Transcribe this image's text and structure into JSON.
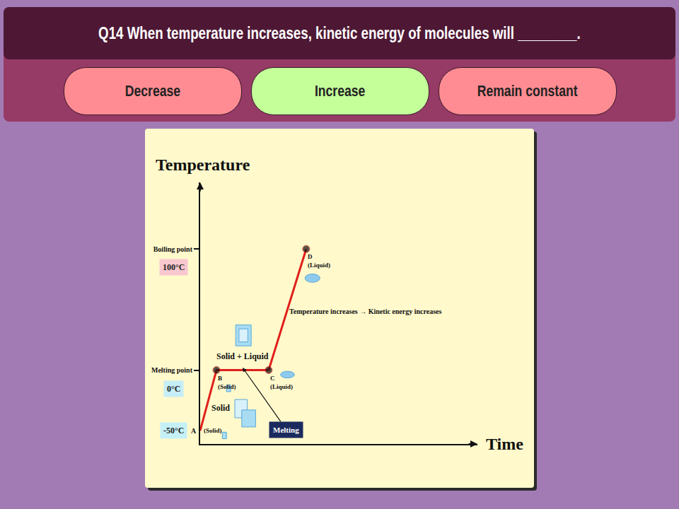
{
  "question": "Q14 When temperature increases, kinetic energy of molecules will ________.",
  "options": [
    "Decrease",
    "Increase",
    "Remain constant"
  ],
  "selected": "Increase",
  "chart_data": {
    "type": "line",
    "y_label": "Temperature",
    "x_label": "Time",
    "x": [
      0,
      1,
      4.2,
      6.5
    ],
    "values": [
      -50,
      0,
      0,
      100
    ],
    "color": "#e0201b",
    "marker": "circle",
    "point_labels": [
      "A",
      "B",
      "C",
      "D"
    ],
    "point_states": [
      "(Solid)",
      "(Solid)",
      "(Liquid)",
      "(Liquid)"
    ],
    "xlim": [
      0,
      17
    ],
    "xticks": [],
    "ylim": [
      -61,
      155
    ],
    "yticks": [
      {
        "value": 0,
        "label": "Melting point"
      },
      {
        "value": 100,
        "label": "Boiling point"
      }
    ],
    "marked_temperatures": [
      {
        "value": -50,
        "label": "-50°C"
      },
      {
        "value": 0,
        "label": "0°C"
      },
      {
        "value": 100,
        "label": "100°C"
      }
    ],
    "annotations": [
      "Solid + Liquid",
      "Solid",
      "Melting",
      "Temperature increases → Kinetic energy increases"
    ],
    "tick_labels": "y",
    "grid": false
  }
}
